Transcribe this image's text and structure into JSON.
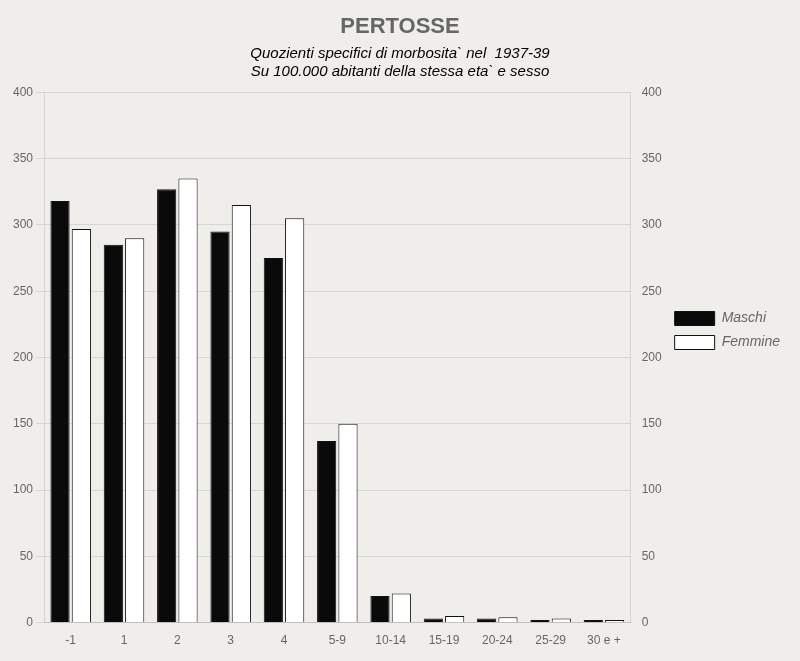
{
  "chart_data": {
    "type": "bar",
    "title": "PERTOSSE",
    "subtitle": [
      "Quozienti specifici di morbosita` nel  1937-39",
      "Su 100.000 abitanti della stessa eta` e sesso"
    ],
    "categories": [
      "-1",
      "1",
      "2",
      "3",
      "4",
      "5-9",
      "10-14",
      "15-19",
      "20-24",
      "25-29",
      "30 e +"
    ],
    "series": [
      {
        "name": "Maschi",
        "color": "#0a0a0a",
        "values": [
          318,
          285,
          327,
          295,
          275,
          137,
          20,
          3,
          3,
          2,
          2
        ]
      },
      {
        "name": "Femmine",
        "color": "#ffffff",
        "values": [
          297,
          290,
          335,
          315,
          305,
          150,
          22,
          5,
          4,
          3,
          2
        ]
      }
    ],
    "ylim": [
      0,
      400
    ],
    "yticks": [
      0,
      50,
      100,
      150,
      200,
      250,
      300,
      350,
      400
    ],
    "y2lim": [
      0,
      400
    ],
    "y2ticks": [
      0,
      50,
      100,
      150,
      200,
      250,
      300,
      350,
      400
    ],
    "grid": true,
    "legend": "right"
  }
}
